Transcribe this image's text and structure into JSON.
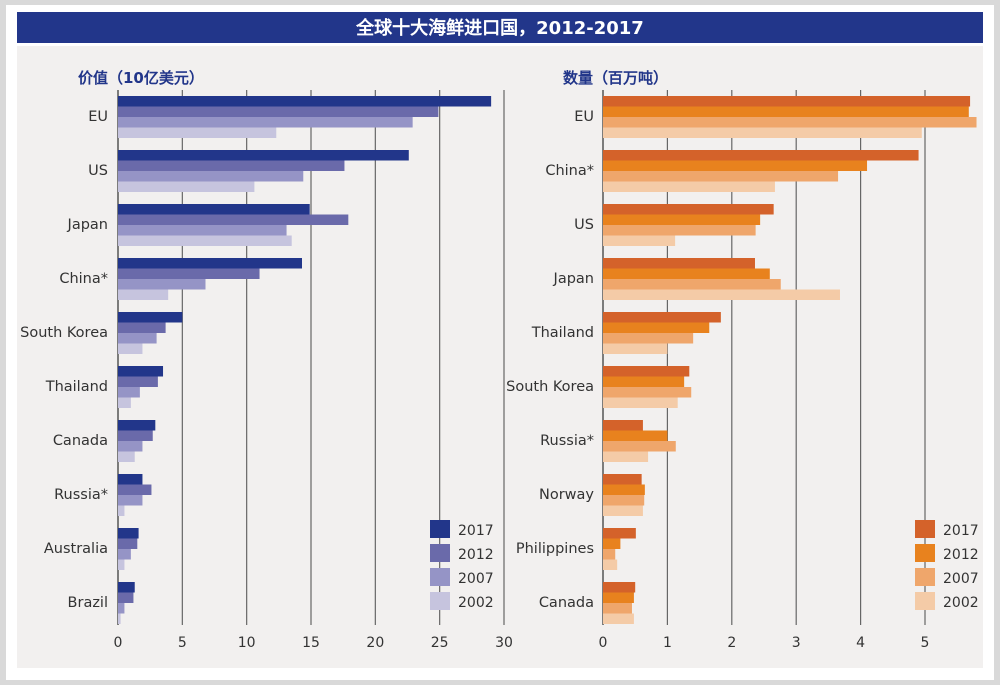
{
  "title": "全球十大海鲜进口国，2012-2017",
  "legend_years": [
    "2017",
    "2012",
    "2007",
    "2002"
  ],
  "chart_data": [
    {
      "type": "bar",
      "orientation": "horizontal",
      "title": "价值（10亿美元）",
      "categories": [
        "EU",
        "US",
        "Japan",
        "China*",
        "South Korea",
        "Thailand",
        "Canada",
        "Russia*",
        "Australia",
        "Brazil"
      ],
      "xlim": [
        0,
        30
      ],
      "ticks": [
        0,
        5,
        10,
        15,
        20,
        25,
        30
      ],
      "grid": true,
      "legend_position": "bottom-right",
      "colors": [
        "#22368a",
        "#6a6aaa",
        "#9594c6",
        "#c6c4de"
      ],
      "series": [
        {
          "name": "2017",
          "values": [
            29.0,
            22.6,
            14.9,
            14.3,
            5.0,
            3.5,
            2.9,
            1.9,
            1.6,
            1.3
          ]
        },
        {
          "name": "2012",
          "values": [
            24.9,
            17.6,
            17.9,
            11.0,
            3.7,
            3.1,
            2.7,
            2.6,
            1.5,
            1.2
          ]
        },
        {
          "name": "2007",
          "values": [
            22.9,
            14.4,
            13.1,
            6.8,
            3.0,
            1.7,
            1.9,
            1.9,
            1.0,
            0.5
          ]
        },
        {
          "name": "2002",
          "values": [
            12.3,
            10.6,
            13.5,
            3.9,
            1.9,
            1.0,
            1.3,
            0.5,
            0.5,
            0.2
          ]
        }
      ]
    },
    {
      "type": "bar",
      "orientation": "horizontal",
      "title": "数量（百万吨）",
      "categories": [
        "EU",
        "China*",
        "US",
        "Japan",
        "Thailand",
        "South Korea",
        "Russia*",
        "Norway",
        "Philippines",
        "Canada"
      ],
      "xlim": [
        0,
        5.8
      ],
      "ticks": [
        0,
        1,
        2,
        3,
        4,
        5
      ],
      "grid": true,
      "legend_position": "bottom-right",
      "colors": [
        "#d4622a",
        "#e8821e",
        "#efa66b",
        "#f4cba7"
      ],
      "series": [
        {
          "name": "2017",
          "values": [
            5.7,
            4.9,
            2.65,
            2.36,
            1.83,
            1.34,
            0.62,
            0.6,
            0.51,
            0.5
          ]
        },
        {
          "name": "2012",
          "values": [
            5.68,
            4.1,
            2.44,
            2.59,
            1.65,
            1.26,
            1.0,
            0.65,
            0.27,
            0.48
          ]
        },
        {
          "name": "2007",
          "values": [
            5.8,
            3.65,
            2.37,
            2.76,
            1.4,
            1.37,
            1.13,
            0.64,
            0.19,
            0.45
          ]
        },
        {
          "name": "2002",
          "values": [
            4.95,
            2.67,
            1.12,
            3.68,
            1.0,
            1.16,
            0.7,
            0.62,
            0.22,
            0.48
          ]
        }
      ]
    }
  ]
}
